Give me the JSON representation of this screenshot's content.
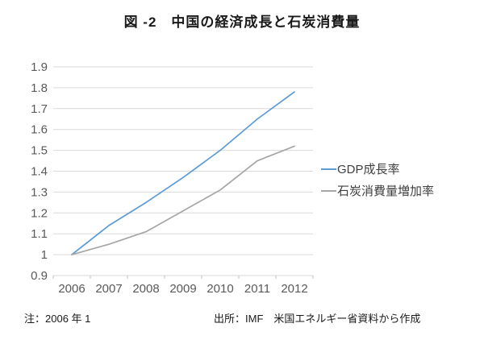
{
  "title": "図 -2　中国の経済成長と石炭消費量",
  "chart_data": {
    "type": "line",
    "x": [
      2006,
      2007,
      2008,
      2009,
      2010,
      2011,
      2012
    ],
    "x_tick_labels": [
      "2006",
      "2007",
      "2008",
      "2009",
      "2010",
      "2011",
      "2012"
    ],
    "series": [
      {
        "name": "GDP成長率",
        "color": "#5B9BD5",
        "values": [
          1.0,
          1.14,
          1.25,
          1.37,
          1.5,
          1.65,
          1.78
        ]
      },
      {
        "name": "石炭消費量増加率",
        "color": "#A6A6A6",
        "values": [
          1.0,
          1.05,
          1.11,
          1.21,
          1.31,
          1.45,
          1.52
        ]
      }
    ],
    "ylim": [
      0.9,
      1.9
    ],
    "ytick_step": 0.1,
    "ytick_labels": [
      "0.9",
      "1",
      "1.1",
      "1.2",
      "1.3",
      "1.4",
      "1.5",
      "1.6",
      "1.7",
      "1.8",
      "1.9"
    ],
    "grid": true,
    "legend_position": "right",
    "colors": {
      "gridline": "#D9D9D9",
      "tick_label": "#595959",
      "axis_tick": "#BFBFBF"
    }
  },
  "footer": {
    "note": "注：2006 年 1",
    "source": "出所：IMF　米国エネルギー省資料から作成"
  }
}
